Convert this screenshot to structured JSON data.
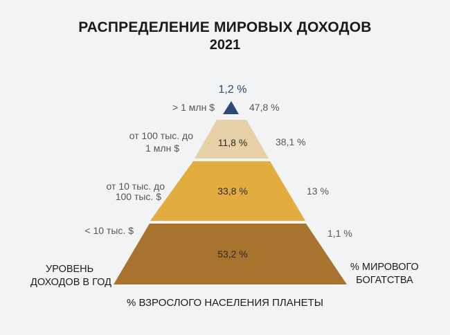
{
  "title": "РАСПРЕДЕЛЕНИЕ МИРОВЫХ ДОХОДОВ",
  "year": "2021",
  "colors": {
    "tier1": "#2e4a73",
    "tier2": "#e6d1a8",
    "tier3": "#e2ad3e",
    "tier4": "#a8732e"
  },
  "tiers": [
    {
      "income": "> 1 млн $",
      "population": "1,2 %",
      "wealth": "47,8 %"
    },
    {
      "income_line1": "от 100 тыс. до",
      "income_line2": "1 млн $",
      "population": "11,8 %",
      "wealth": "38,1 %"
    },
    {
      "income_line1": "от 10 тыс. до",
      "income_line2": "100 тыс. $",
      "population": "33,8 %",
      "wealth": "13 %"
    },
    {
      "income": "< 10 тыс. $",
      "population": "53,2 %",
      "wealth": "1,1 %"
    }
  ],
  "axes": {
    "left_line1": "УРОВЕНЬ",
    "left_line2": "ДОХОДОВ В ГОД",
    "right_line1": "% МИРОВОГО",
    "right_line2": "БОГАТСТВА",
    "bottom": "% ВЗРОСЛОГО НАСЕЛЕНИЯ ПЛАНЕТЫ"
  }
}
